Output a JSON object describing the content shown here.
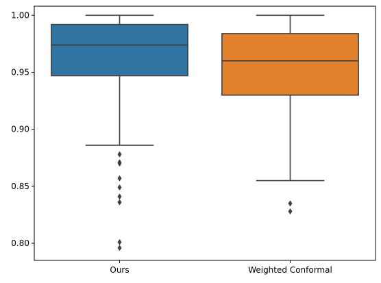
{
  "chart_data": {
    "type": "box",
    "categories": [
      "Ours",
      "Weighted Conformal"
    ],
    "ylim": [
      0.785,
      1.008
    ],
    "yticks": [
      "0.80",
      "0.85",
      "0.90",
      "0.95",
      "1.00"
    ],
    "grid": false,
    "series": [
      {
        "category": "Ours",
        "color": "#3274a1",
        "whisker_low": 0.886,
        "q1": 0.947,
        "median": 0.974,
        "q3": 0.992,
        "whisker_high": 1.0,
        "outliers": [
          0.878,
          0.871,
          0.87,
          0.857,
          0.849,
          0.841,
          0.836,
          0.801,
          0.796
        ]
      },
      {
        "category": "Weighted Conformal",
        "color": "#e1812c",
        "whisker_low": 0.855,
        "q1": 0.93,
        "median": 0.96,
        "q3": 0.984,
        "whisker_high": 1.0,
        "outliers": [
          0.835,
          0.828
        ]
      }
    ]
  }
}
